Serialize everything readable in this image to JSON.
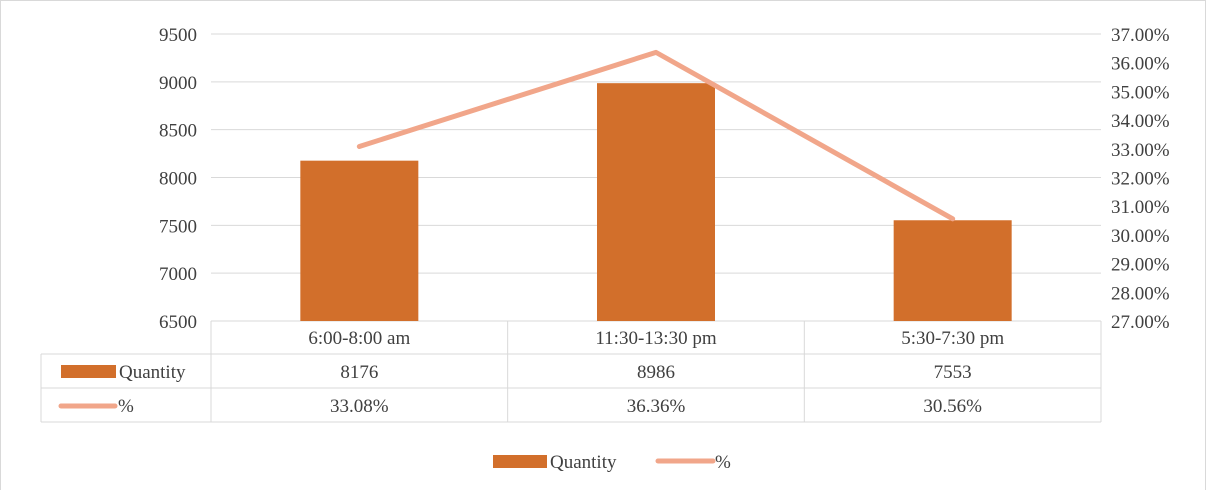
{
  "chart_data": {
    "type": "bar",
    "categories": [
      "6:00-8:00 am",
      "11:30-13:30 pm",
      "5:30-7:30 pm"
    ],
    "series": [
      {
        "name": "Quantity",
        "type": "bar",
        "axis": "left",
        "values": [
          8176,
          8986,
          7553
        ],
        "labels": [
          "8176",
          "8986",
          "7553"
        ]
      },
      {
        "name": "%",
        "type": "line",
        "axis": "right",
        "values": [
          33.08,
          36.36,
          30.56
        ],
        "labels": [
          "33.08%",
          "36.36%",
          "30.56%"
        ]
      }
    ],
    "y_left": {
      "min": 6500,
      "max": 9500,
      "ticks": [
        "9500",
        "9000",
        "8500",
        "8000",
        "7500",
        "7000",
        "6500"
      ]
    },
    "y_right": {
      "min": 27,
      "max": 37,
      "ticks": [
        "37.00%",
        "36.00%",
        "35.00%",
        "34.00%",
        "33.00%",
        "32.00%",
        "31.00%",
        "30.00%",
        "29.00%",
        "28.00%",
        "27.00%"
      ]
    },
    "gridlines": true,
    "data_table": true,
    "legend": {
      "position": "bottom",
      "items": [
        "Quantity",
        "%"
      ]
    }
  },
  "colors": {
    "bar": "#d26f2b",
    "line": "#f1a68a",
    "grid": "#d9d9d9",
    "text": "#404040"
  }
}
